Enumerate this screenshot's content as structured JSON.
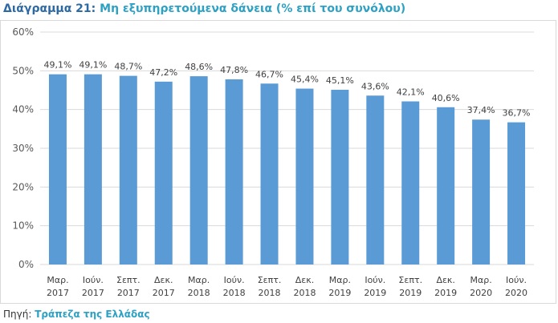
{
  "header": {
    "label": "Διάγραμμα 21:",
    "title": "Μη εξυπηρετούμενα δάνεια (% επί του συνόλου)"
  },
  "footer": {
    "label": "Πηγή:",
    "source": "Τράπεζα της Ελλάδας"
  },
  "colors": {
    "bar": "#5b9bd5",
    "grid": "#d9d9d9",
    "title_label": "#2d6aa3",
    "title_accent": "#2da1c4"
  },
  "chart_data": {
    "type": "bar",
    "categories": [
      [
        "Μαρ.",
        "2017"
      ],
      [
        "Ιούν.",
        "2017"
      ],
      [
        "Σεπτ.",
        "2017"
      ],
      [
        "Δεκ.",
        "2017"
      ],
      [
        "Μαρ.",
        "2018"
      ],
      [
        "Ιούν.",
        "2018"
      ],
      [
        "Σεπτ.",
        "2018"
      ],
      [
        "Δεκ.",
        "2018"
      ],
      [
        "Μαρ.",
        "2019"
      ],
      [
        "Ιούν.",
        "2019"
      ],
      [
        "Σεπτ.",
        "2019"
      ],
      [
        "Δεκ.",
        "2019"
      ],
      [
        "Μαρ.",
        "2020"
      ],
      [
        "Ιούν.",
        "2020"
      ]
    ],
    "values": [
      49.1,
      49.1,
      48.7,
      47.2,
      48.6,
      47.8,
      46.7,
      45.4,
      45.1,
      43.6,
      42.1,
      40.6,
      37.4,
      36.7
    ],
    "data_labels": [
      "49,1%",
      "49,1%",
      "48,7%",
      "47,2%",
      "48,6%",
      "47,8%",
      "46,7%",
      "45,4%",
      "45,1%",
      "43,6%",
      "42,1%",
      "40,6%",
      "37,4%",
      "36,7%"
    ],
    "ylim": [
      0,
      60
    ],
    "yticks": [
      0,
      10,
      20,
      30,
      40,
      50,
      60
    ],
    "ytick_labels": [
      "0%",
      "10%",
      "20%",
      "30%",
      "40%",
      "50%",
      "60%"
    ],
    "grid": true,
    "legend": false
  }
}
